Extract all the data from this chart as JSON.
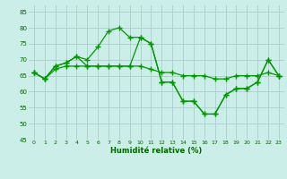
{
  "title": "",
  "xlabel": "Humidité relative (%)",
  "ylabel": "",
  "background_color": "#cceee8",
  "grid_color": "#aacccc",
  "line_color": "#009900",
  "ylim": [
    45,
    87
  ],
  "xlim": [
    -0.5,
    23.5
  ],
  "yticks": [
    45,
    50,
    55,
    60,
    65,
    70,
    75,
    80,
    85
  ],
  "xticks": [
    0,
    1,
    2,
    3,
    4,
    5,
    6,
    7,
    8,
    9,
    10,
    11,
    12,
    13,
    14,
    15,
    16,
    17,
    18,
    19,
    20,
    21,
    22,
    23
  ],
  "series1": [
    66,
    64,
    68,
    69,
    71,
    70,
    74,
    79,
    80,
    77,
    77,
    75,
    63,
    63,
    57,
    57,
    53,
    53,
    59,
    61,
    61,
    63,
    70,
    65
  ],
  "series2": [
    66,
    64,
    67,
    68,
    68,
    68,
    68,
    68,
    68,
    68,
    68,
    67,
    66,
    66,
    65,
    65,
    65,
    64,
    64,
    65,
    65,
    65,
    66,
    65
  ],
  "series3": [
    66,
    64,
    68,
    69,
    71,
    68,
    68,
    68,
    68,
    68,
    77,
    75,
    63,
    63,
    57,
    57,
    53,
    53,
    59,
    61,
    61,
    63,
    70,
    65
  ]
}
